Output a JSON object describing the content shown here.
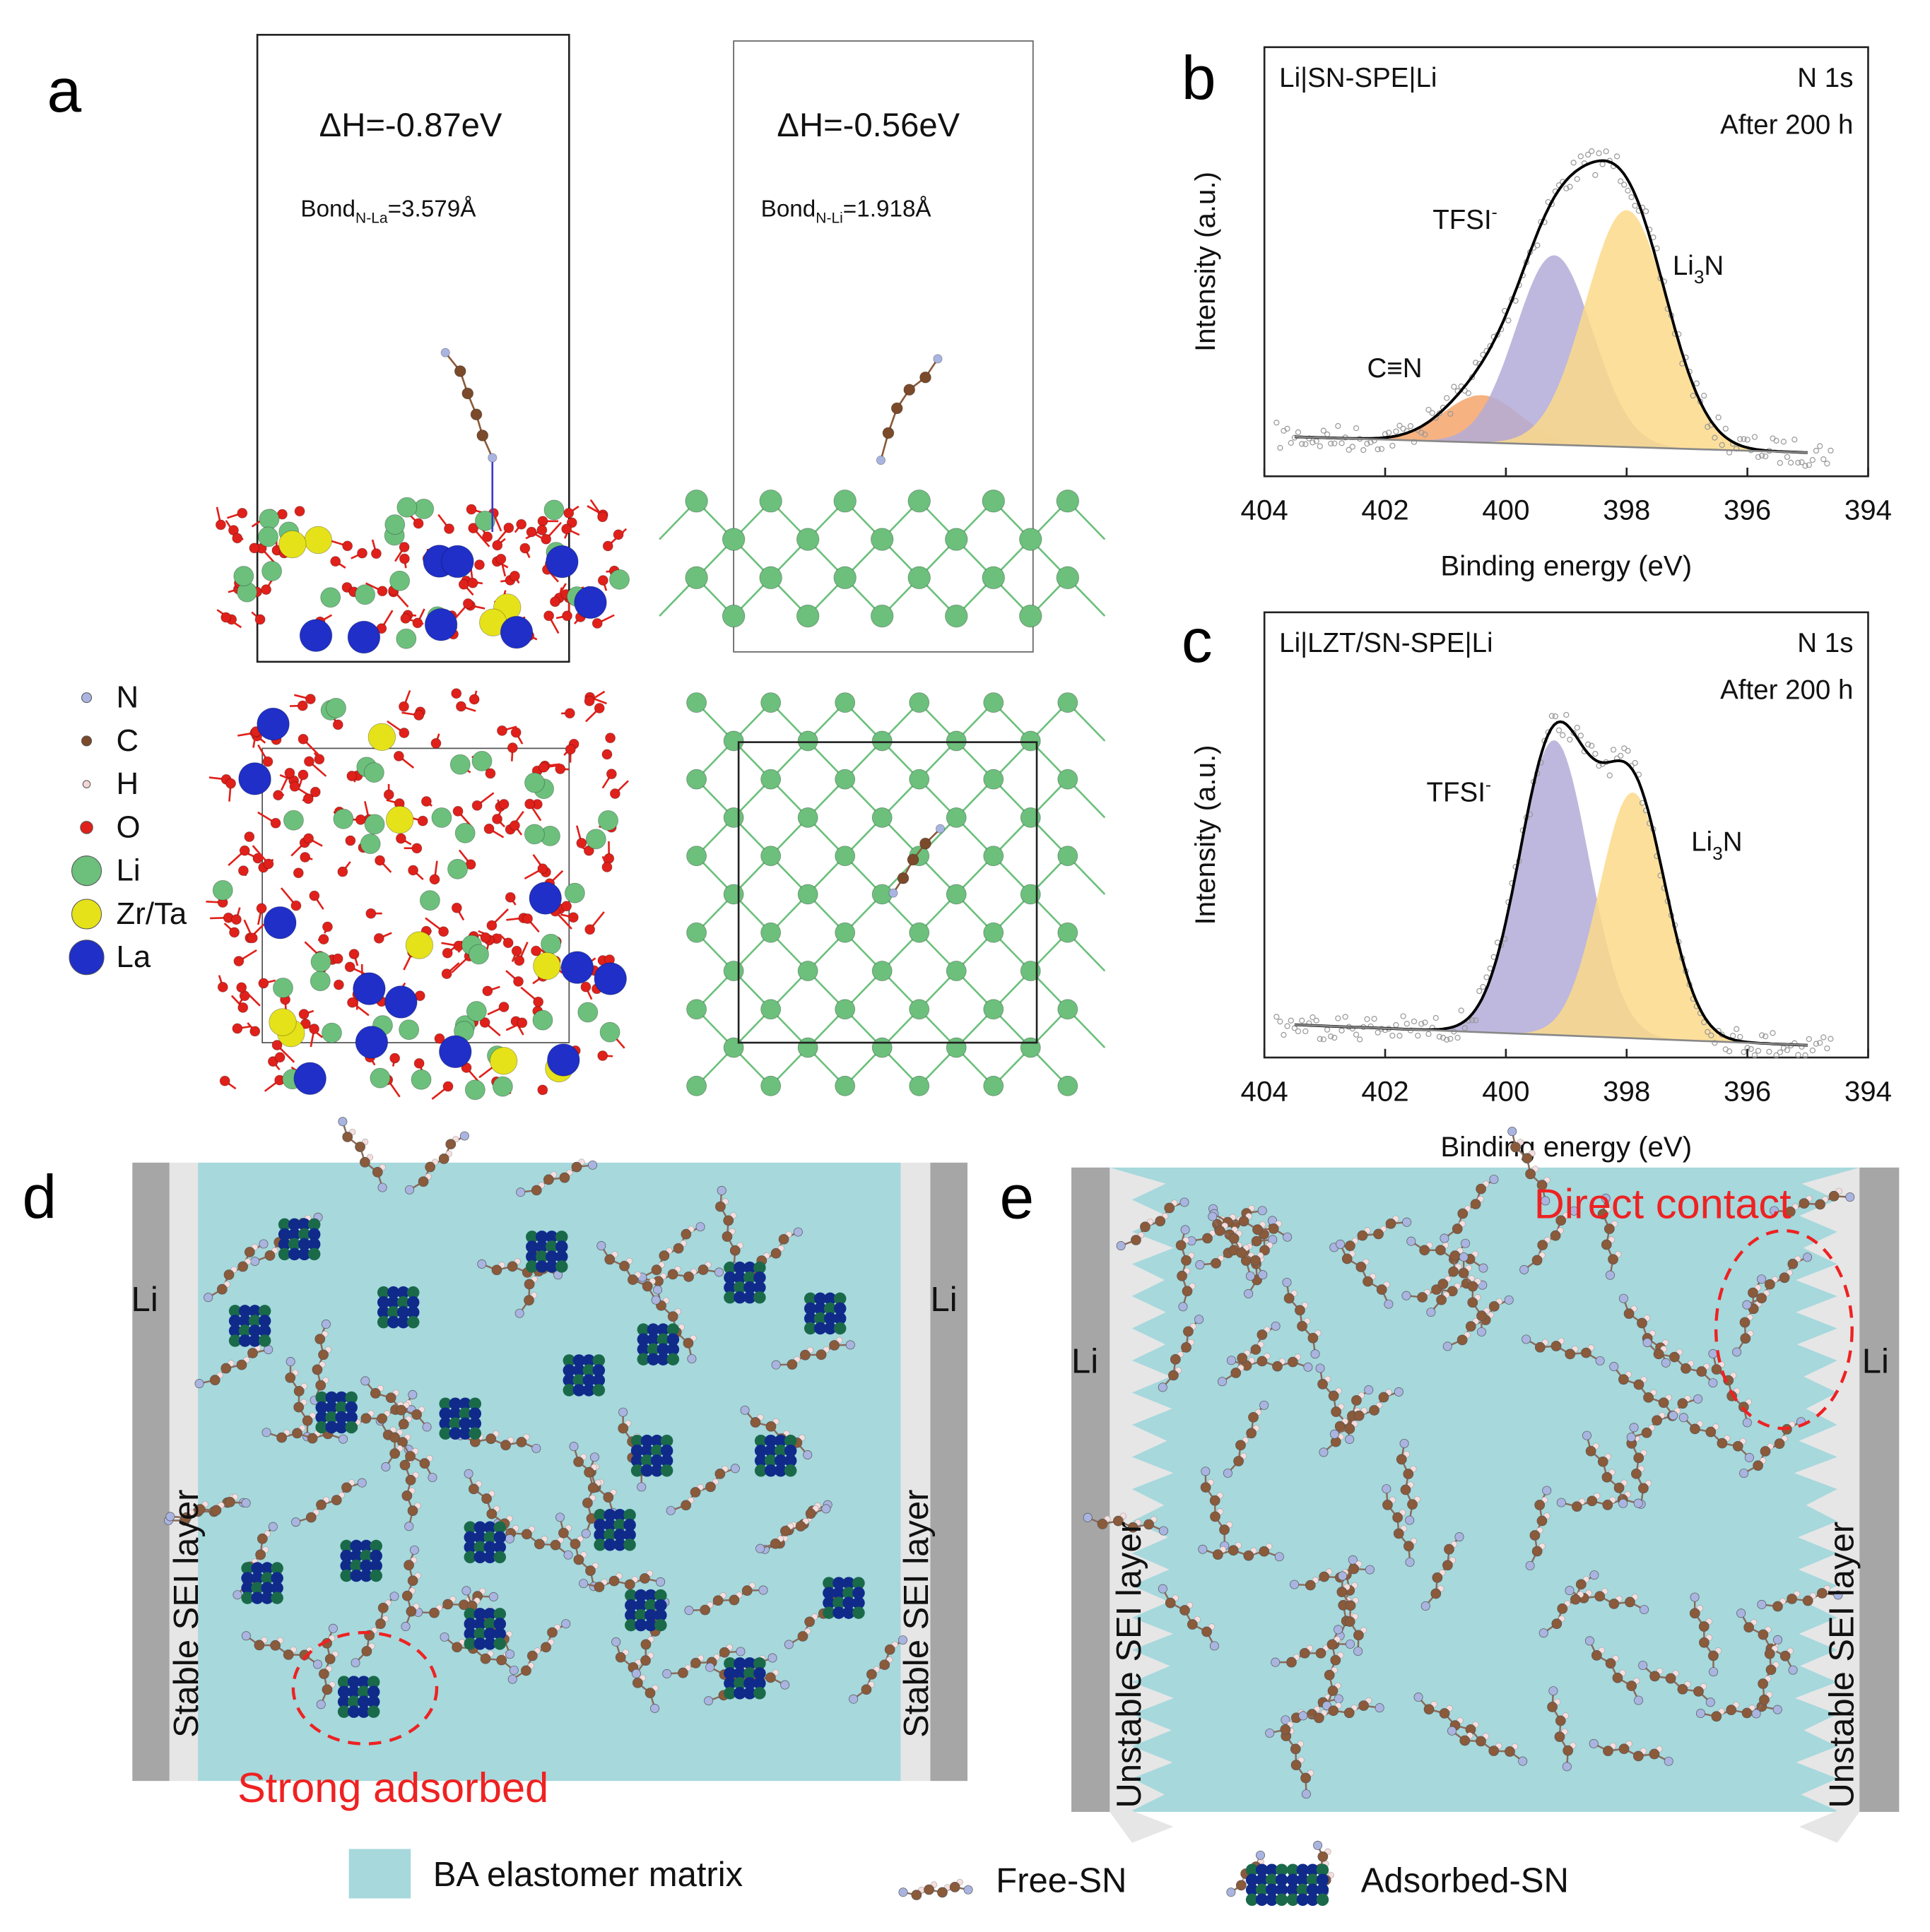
{
  "panel_labels": {
    "a": "a",
    "b": "b",
    "c": "c",
    "d": "d",
    "e": "e"
  },
  "panel_a": {
    "left": {
      "dH": "ΔH=-0.87eV",
      "bond_prefix": "Bond",
      "bond_sub": "N-La",
      "bond_value": "=3.579Å"
    },
    "right": {
      "dH": "ΔH=-0.56eV",
      "bond_prefix": "Bond",
      "bond_sub": "N-Li",
      "bond_value": "=1.918Å"
    },
    "legend": [
      {
        "label": "N",
        "color": "#a9b4e0"
      },
      {
        "label": "C",
        "color": "#7a4a2a"
      },
      {
        "label": "H",
        "color": "#f3d6d6"
      },
      {
        "label": "O",
        "color": "#e0201a"
      },
      {
        "label": "Li",
        "color": "#6cc07c"
      },
      {
        "label": "Zr/Ta",
        "color": "#e6e21a"
      },
      {
        "label": "La",
        "color": "#1f2fc8"
      }
    ]
  },
  "chart_data": [
    {
      "type": "line",
      "panel": "b",
      "title": "Li|SN-SPE|Li",
      "annotation_1": "N 1s",
      "annotation_2": "After 200 h",
      "xlabel": "Binding energy (eV)",
      "ylabel": "Intensity (a.u.)",
      "xlim": [
        404,
        394
      ],
      "xticks": [
        "404",
        "402",
        "400",
        "398",
        "396",
        "394"
      ],
      "baseline": [
        0.1,
        0.06
      ],
      "peaks": [
        {
          "name": "C≡N",
          "center": 400.4,
          "amplitude": 0.12,
          "fwhm": 1.5,
          "color": "#f4a46a"
        },
        {
          "name": "TFSI",
          "center": 399.2,
          "amplitude": 0.48,
          "fwhm": 1.5,
          "color": "#b3acd8"
        },
        {
          "name": "Li3N",
          "center": 398.0,
          "amplitude": 0.6,
          "fwhm": 1.6,
          "color": "#fbd98a"
        }
      ]
    },
    {
      "type": "line",
      "panel": "c",
      "title": "Li|LZT/SN-SPE|Li",
      "annotation_1": "N 1s",
      "annotation_2": "After 200 h",
      "xlabel": "Binding energy (eV)",
      "ylabel": "Intensity (a.u.)",
      "xlim": [
        404,
        394
      ],
      "xticks": [
        "404",
        "402",
        "400",
        "398",
        "396",
        "394"
      ],
      "baseline": [
        0.08,
        0.03
      ],
      "peaks": [
        {
          "name": "TFSI",
          "center": 399.2,
          "amplitude": 0.72,
          "fwhm": 1.35,
          "color": "#b3acd8"
        },
        {
          "name": "Li3N",
          "center": 397.9,
          "amplitude": 0.6,
          "fwhm": 1.3,
          "color": "#fbd98a"
        }
      ]
    }
  ],
  "peak_labels": {
    "cn": "C≡N",
    "tfsi": "TFSI",
    "tfsi_sup": "-",
    "li3n_a": "Li",
    "li3n_sub": "3",
    "li3n_b": "N"
  },
  "panel_d": {
    "li_left": "Li",
    "li_right": "Li",
    "sei_left": "Stable SEI layer",
    "sei_right": "Stable SEI layer",
    "callout": "Strong adsorbed"
  },
  "panel_e": {
    "li_left": "Li",
    "li_right": "Li",
    "sei_left": "Unstable SEI layer",
    "sei_right": "Unstable SEI layer",
    "callout": "Direct contact"
  },
  "legend": {
    "matrix": "BA elastomer matrix",
    "free": "Free-SN",
    "adsorbed": "Adsorbed-SN"
  },
  "colors": {
    "matrix": "#a6d8dc",
    "li": "#a6a6a6",
    "sei": "#e6e6e6",
    "red": "#ee2222"
  }
}
